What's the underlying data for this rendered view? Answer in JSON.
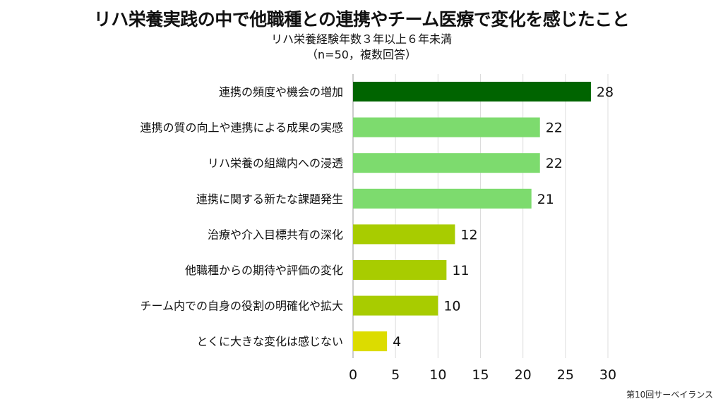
{
  "title": "リハ栄養実践の中で他職種との連携やチーム医療で変化を感じたこと",
  "subtitle_line1": "リハ栄養経験年数３年以上６年未満",
  "subtitle_line2": "（n=50，複数回答）",
  "source": "第10回サーベイランス",
  "chart_data": {
    "type": "bar",
    "orientation": "horizontal",
    "categories": [
      "連携の頻度や機会の増加",
      "連携の質の向上や連携による成果の実感",
      "リハ栄養の組織内への浸透",
      "連携に関する新たな課題発生",
      "治療や介入目標共有の深化",
      "他職種からの期待や評価の変化",
      "チーム内での自身の役割の明確化や拡大",
      "とくに大きな変化は感じない"
    ],
    "values": [
      28,
      22,
      22,
      21,
      12,
      11,
      10,
      4
    ],
    "colors": [
      "#006400",
      "#7ddb6e",
      "#7ddb6e",
      "#7ddb6e",
      "#a8cc00",
      "#a8cc00",
      "#a8cc00",
      "#dcdc00"
    ],
    "xlim": [
      0,
      30
    ],
    "xticks": [
      0,
      5,
      10,
      15,
      20,
      25,
      30
    ],
    "grid": true
  }
}
